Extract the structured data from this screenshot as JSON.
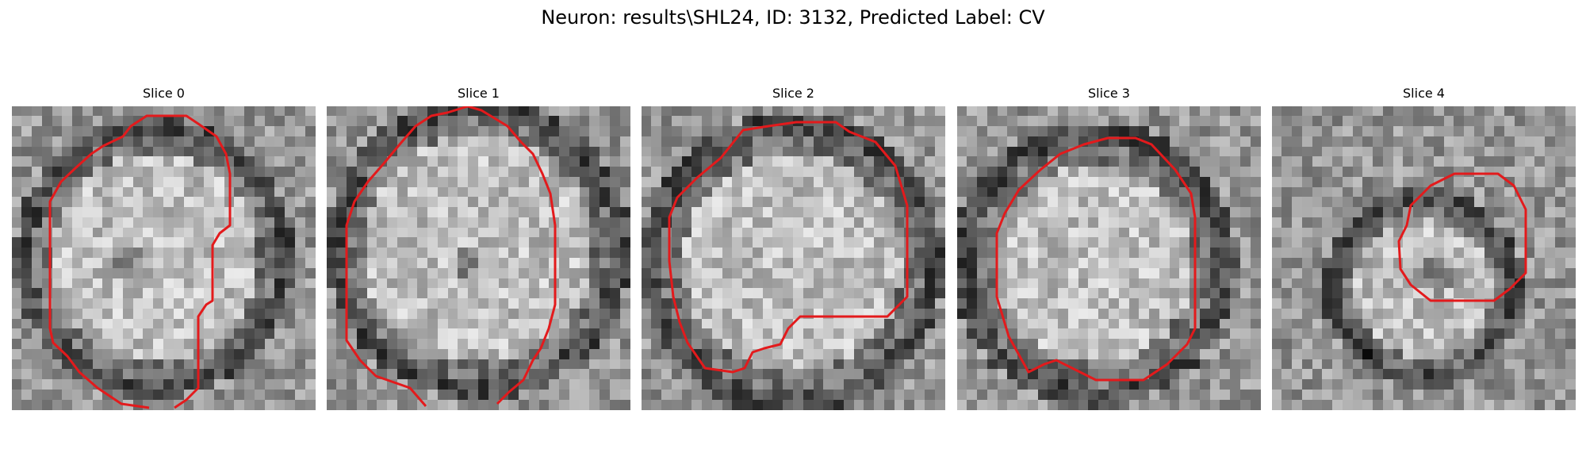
{
  "figure": {
    "title": "Neuron: results\\SHL24, ID: 3132, Predicted Label: CV"
  },
  "colors": {
    "contour": "#e31a1c",
    "background": "#ffffff"
  },
  "panels": [
    {
      "title": "Slice 0"
    },
    {
      "title": "Slice 1"
    },
    {
      "title": "Slice 2"
    },
    {
      "title": "Slice 3"
    },
    {
      "title": "Slice 4"
    }
  ]
}
